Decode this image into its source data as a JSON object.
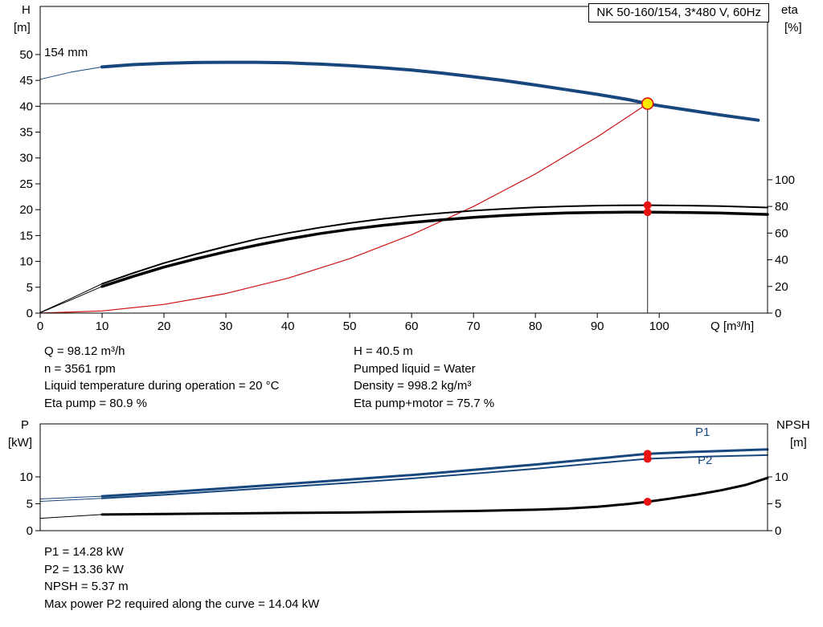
{
  "title_box": "NK 50-160/154, 3*480 V, 60Hz",
  "colors": {
    "curve_blue": "#17477d",
    "curve_red": "#cc1111",
    "marker_red": "#e81313",
    "duty_fill": "#ffe800",
    "axis_black": "#000000"
  },
  "top_chart_labels": {
    "y_left_1": "H",
    "y_left_2": "[m]",
    "y_right_1": "eta",
    "y_right_2": "[%]",
    "x_label": "Q [m³/h]",
    "curve_label": "154 mm"
  },
  "bottom_chart_labels": {
    "y_left_1": "P",
    "y_left_2": "[kW]",
    "y_right_1": "NPSH",
    "y_right_2": "[m]",
    "p1_label": "P1",
    "p2_label": "P2"
  },
  "info_top": {
    "left": [
      "Q = 98.12 m³/h",
      "n = 3561 rpm",
      "Liquid temperature during operation = 20 °C",
      "Eta pump = 80.9 %"
    ],
    "right": [
      "H = 40.5 m",
      "Pumped liquid = Water",
      "Density = 998.2 kg/m³",
      "Eta pump+motor = 75.7 %"
    ]
  },
  "info_bottom": [
    "P1 = 14.28 kW",
    "P2 = 13.36 kW",
    "NPSH = 5.37 m",
    "Max power P2 required along the curve = 14.04 kW"
  ],
  "chart_data": [
    {
      "type": "line",
      "title": "NK 50-160/154, 3*480 V, 60Hz",
      "xlabel": "Q [m³/h]",
      "ylabel_left": "H [m]",
      "ylabel_right": "eta [%]",
      "xlim": [
        0,
        117.5
      ],
      "ylim_left": [
        0,
        59.3
      ],
      "ylim_right": [
        0,
        230
      ],
      "x_ticks": [
        0,
        10,
        20,
        30,
        40,
        50,
        60,
        70,
        80,
        90,
        100
      ],
      "left_ticks": [
        0,
        5,
        10,
        15,
        20,
        25,
        30,
        35,
        40,
        45,
        50
      ],
      "right_ticks": [
        0,
        20,
        40,
        60,
        80,
        100
      ],
      "grid": false,
      "duty_point": {
        "Q": 98.12,
        "H": 40.5,
        "eta_pump": 80.9,
        "eta_pump_motor": 75.7
      },
      "crosshair": {
        "q": 98.12,
        "h": 40.5
      },
      "series": [
        {
          "name": "hq-lead",
          "axis": "left",
          "color": "#17477d",
          "width": 1,
          "points": [
            [
              0,
              45.2
            ],
            [
              5,
              46.6
            ],
            [
              10,
              47.6
            ]
          ]
        },
        {
          "name": "system-curve",
          "axis": "left",
          "color": "#cc1111",
          "width": 1.2,
          "points": [
            [
              0,
              0
            ],
            [
              10,
              0.42
            ],
            [
              20,
              1.68
            ],
            [
              30,
              3.79
            ],
            [
              40,
              6.73
            ],
            [
              50,
              10.52
            ],
            [
              60,
              15.15
            ],
            [
              70,
              20.61
            ],
            [
              80,
              26.92
            ],
            [
              90,
              34.08
            ],
            [
              98.12,
              40.5
            ]
          ]
        },
        {
          "name": "eta-pump-lead",
          "axis": "right",
          "color": "#000000",
          "width": 1,
          "points": [
            [
              0,
              0.5
            ],
            [
              5,
              11
            ],
            [
              10,
              22
            ]
          ]
        },
        {
          "name": "eta-pump-motor-lead",
          "axis": "right",
          "color": "#000000",
          "width": 1,
          "points": [
            [
              0,
              0.3
            ],
            [
              5,
              10
            ],
            [
              10,
              20
            ]
          ]
        },
        {
          "name": "hq-154mm",
          "axis": "left",
          "color": "#17477d",
          "width": 4,
          "points": [
            [
              10,
              47.6
            ],
            [
              15,
              48.05
            ],
            [
              20,
              48.3
            ],
            [
              25,
              48.45
            ],
            [
              30,
              48.5
            ],
            [
              35,
              48.5
            ],
            [
              40,
              48.38
            ],
            [
              45,
              48.15
            ],
            [
              50,
              47.85
            ],
            [
              55,
              47.45
            ],
            [
              60,
              47.0
            ],
            [
              65,
              46.4
            ],
            [
              70,
              45.7
            ],
            [
              75,
              44.95
            ],
            [
              80,
              44.1
            ],
            [
              85,
              43.2
            ],
            [
              90,
              42.3
            ],
            [
              95,
              41.3
            ],
            [
              98.12,
              40.5
            ],
            [
              100,
              40.1
            ],
            [
              105,
              39.2
            ],
            [
              110,
              38.3
            ],
            [
              116,
              37.3
            ]
          ]
        },
        {
          "name": "eta-pump",
          "axis": "right",
          "color": "#000000",
          "width": 2,
          "points": [
            [
              10,
              22
            ],
            [
              15,
              30
            ],
            [
              20,
              37.5
            ],
            [
              25,
              44
            ],
            [
              30,
              50
            ],
            [
              35,
              55.5
            ],
            [
              40,
              60
            ],
            [
              45,
              64
            ],
            [
              50,
              67.5
            ],
            [
              55,
              70.5
            ],
            [
              60,
              73
            ],
            [
              65,
              75
            ],
            [
              70,
              76.8
            ],
            [
              75,
              78.2
            ],
            [
              80,
              79.3
            ],
            [
              85,
              80.1
            ],
            [
              90,
              80.6
            ],
            [
              95,
              80.85
            ],
            [
              98.12,
              80.9
            ],
            [
              105,
              80.6
            ],
            [
              110,
              80.2
            ],
            [
              117.5,
              79.2
            ]
          ]
        },
        {
          "name": "eta-pump-motor",
          "axis": "right",
          "color": "#000000",
          "width": 3.5,
          "points": [
            [
              10,
              20
            ],
            [
              15,
              27.5
            ],
            [
              20,
              34.5
            ],
            [
              25,
              40.5
            ],
            [
              30,
              46
            ],
            [
              35,
              51
            ],
            [
              40,
              55.5
            ],
            [
              45,
              59.5
            ],
            [
              50,
              62.8
            ],
            [
              55,
              65.6
            ],
            [
              60,
              68
            ],
            [
              65,
              70
            ],
            [
              70,
              71.8
            ],
            [
              75,
              73.2
            ],
            [
              80,
              74.3
            ],
            [
              85,
              75.1
            ],
            [
              90,
              75.5
            ],
            [
              95,
              75.7
            ],
            [
              98.12,
              75.7
            ],
            [
              105,
              75.4
            ],
            [
              110,
              75
            ],
            [
              117.5,
              74
            ]
          ]
        }
      ],
      "markers": [
        {
          "name": "duty-point-marker",
          "axis": "left",
          "q": 98.12,
          "v": 40.5,
          "r": 7,
          "fill": "#ffe800",
          "stroke": "#dd1111",
          "stroke_width": 1.6,
          "interactable": true
        },
        {
          "name": "eta-pump-duty-dot",
          "axis": "right",
          "q": 98.12,
          "v": 80.9,
          "r": 5,
          "fill": "#e81313"
        },
        {
          "name": "eta-pump-motor-duty-dot",
          "axis": "right",
          "q": 98.12,
          "v": 75.7,
          "r": 5,
          "fill": "#e81313"
        }
      ]
    },
    {
      "type": "line",
      "title": "Power and NPSH curves",
      "xlabel": "Q [m³/h]",
      "ylabel_left": "P [kW]",
      "ylabel_right": "NPSH [m]",
      "xlim": [
        0,
        117.5
      ],
      "ylim_left": [
        0,
        19.85
      ],
      "ylim_right": [
        0,
        19.85
      ],
      "x_ticks": [],
      "left_ticks": [
        0,
        5,
        10
      ],
      "right_ticks": [
        0,
        5,
        10
      ],
      "grid": false,
      "duty_point": {
        "Q": 98.12,
        "P1": 14.28,
        "P2": 13.36,
        "NPSH": 5.37
      },
      "series": [
        {
          "name": "p1-lead",
          "axis": "left",
          "color": "#17477d",
          "width": 1,
          "points": [
            [
              0,
              5.9
            ],
            [
              10,
              6.4
            ]
          ]
        },
        {
          "name": "p2-lead",
          "axis": "left",
          "color": "#17477d",
          "width": 1,
          "points": [
            [
              0,
              5.45
            ],
            [
              10,
              6.0
            ]
          ]
        },
        {
          "name": "npsh-lead",
          "axis": "right",
          "color": "#000000",
          "width": 1,
          "points": [
            [
              0,
              2.3
            ],
            [
              10,
              3.0
            ]
          ]
        },
        {
          "name": "p1-curve",
          "axis": "left",
          "color": "#17477d",
          "width": 3,
          "points": [
            [
              10,
              6.4
            ],
            [
              20,
              7.1
            ],
            [
              30,
              7.9
            ],
            [
              40,
              8.7
            ],
            [
              50,
              9.5
            ],
            [
              60,
              10.35
            ],
            [
              70,
              11.3
            ],
            [
              80,
              12.3
            ],
            [
              90,
              13.4
            ],
            [
              98.12,
              14.28
            ],
            [
              105,
              14.62
            ],
            [
              110,
              14.82
            ],
            [
              117.5,
              15.1
            ]
          ]
        },
        {
          "name": "p2-curve",
          "axis": "left",
          "color": "#17477d",
          "width": 2,
          "points": [
            [
              10,
              6.0
            ],
            [
              20,
              6.65
            ],
            [
              30,
              7.4
            ],
            [
              40,
              8.15
            ],
            [
              50,
              8.9
            ],
            [
              60,
              9.7
            ],
            [
              70,
              10.6
            ],
            [
              80,
              11.5
            ],
            [
              90,
              12.55
            ],
            [
              98.12,
              13.36
            ],
            [
              105,
              13.67
            ],
            [
              110,
              13.85
            ],
            [
              117.5,
              14.04
            ]
          ]
        },
        {
          "name": "npsh-curve",
          "axis": "right",
          "color": "#000000",
          "width": 3,
          "points": [
            [
              10,
              3.0
            ],
            [
              20,
              3.1
            ],
            [
              30,
              3.2
            ],
            [
              40,
              3.3
            ],
            [
              50,
              3.38
            ],
            [
              60,
              3.5
            ],
            [
              70,
              3.65
            ],
            [
              80,
              3.9
            ],
            [
              85,
              4.1
            ],
            [
              90,
              4.45
            ],
            [
              95,
              4.95
            ],
            [
              98.12,
              5.37
            ],
            [
              102,
              6.0
            ],
            [
              106,
              6.7
            ],
            [
              110,
              7.5
            ],
            [
              114,
              8.5
            ],
            [
              117.5,
              9.8
            ]
          ]
        }
      ],
      "markers": [
        {
          "name": "p1-duty-dot",
          "axis": "left",
          "q": 98.12,
          "v": 14.28,
          "r": 5,
          "fill": "#e81313"
        },
        {
          "name": "p2-duty-dot",
          "axis": "left",
          "q": 98.12,
          "v": 13.36,
          "r": 5,
          "fill": "#e81313"
        },
        {
          "name": "npsh-duty-dot",
          "axis": "right",
          "q": 98.12,
          "v": 5.37,
          "r": 5,
          "fill": "#e81313"
        }
      ]
    }
  ]
}
